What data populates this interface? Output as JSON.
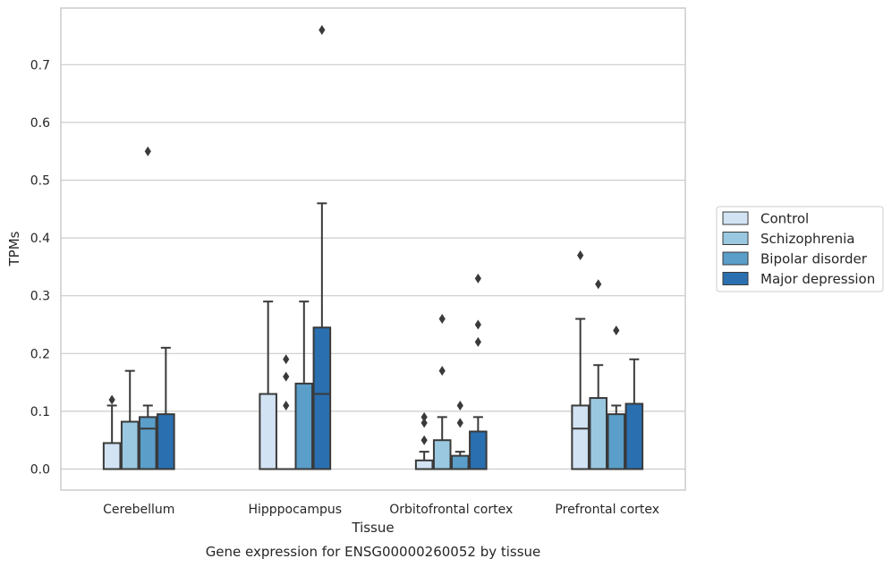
{
  "chart_data": {
    "type": "box",
    "title": "",
    "caption": "Gene expression for ENSG00000260052 by tissue",
    "xlabel": "Tissue",
    "ylabel": "TPMs",
    "ylim": [
      -0.037,
      0.8
    ],
    "yticks": [
      "0.0",
      "0.1",
      "0.2",
      "0.3",
      "0.4",
      "0.5",
      "0.6",
      "0.7"
    ],
    "grid": "horizontal",
    "legend_position": "outside-right",
    "categories": [
      "Cerebellum",
      "Hipppocampus",
      "Orbitofrontal cortex",
      "Prefrontal cortex"
    ],
    "series": [
      {
        "name": "Control",
        "color": "#d2e3f3",
        "boxes": [
          {
            "q1": 0.0,
            "median": 0.0,
            "q3": 0.045,
            "whisker_low": 0.0,
            "whisker_high": 0.11,
            "outliers": [
              0.12
            ]
          },
          {
            "q1": 0.0,
            "median": 0.0,
            "q3": 0.13,
            "whisker_low": 0.0,
            "whisker_high": 0.29,
            "outliers": []
          },
          {
            "q1": 0.0,
            "median": 0.0,
            "q3": 0.015,
            "whisker_low": 0.0,
            "whisker_high": 0.03,
            "outliers": [
              0.05,
              0.08,
              0.09
            ]
          },
          {
            "q1": 0.0,
            "median": 0.07,
            "q3": 0.11,
            "whisker_low": 0.0,
            "whisker_high": 0.26,
            "outliers": [
              0.37
            ]
          }
        ]
      },
      {
        "name": "Schizophrenia",
        "color": "#9ac8e0",
        "boxes": [
          {
            "q1": 0.0,
            "median": 0.0,
            "q3": 0.082,
            "whisker_low": 0.0,
            "whisker_high": 0.17,
            "outliers": []
          },
          {
            "q1": 0.0,
            "median": 0.0,
            "q3": 0.0,
            "whisker_low": 0.0,
            "whisker_high": 0.0,
            "outliers": [
              0.11,
              0.16,
              0.19
            ]
          },
          {
            "q1": 0.0,
            "median": 0.0,
            "q3": 0.05,
            "whisker_low": 0.0,
            "whisker_high": 0.09,
            "outliers": [
              0.17,
              0.26
            ]
          },
          {
            "q1": 0.0,
            "median": 0.0,
            "q3": 0.123,
            "whisker_low": 0.0,
            "whisker_high": 0.18,
            "outliers": [
              0.32
            ]
          }
        ]
      },
      {
        "name": "Bipolar disorder",
        "color": "#5a9ec9",
        "boxes": [
          {
            "q1": 0.0,
            "median": 0.07,
            "q3": 0.09,
            "whisker_low": 0.0,
            "whisker_high": 0.11,
            "outliers": [
              0.55
            ]
          },
          {
            "q1": 0.0,
            "median": 0.0,
            "q3": 0.148,
            "whisker_low": 0.0,
            "whisker_high": 0.29,
            "outliers": []
          },
          {
            "q1": 0.0,
            "median": 0.0,
            "q3": 0.023,
            "whisker_low": 0.0,
            "whisker_high": 0.03,
            "outliers": [
              0.08,
              0.11
            ]
          },
          {
            "q1": 0.0,
            "median": 0.0,
            "q3": 0.095,
            "whisker_low": 0.0,
            "whisker_high": 0.11,
            "outliers": [
              0.24
            ]
          }
        ]
      },
      {
        "name": "Major depression",
        "color": "#2a6fb0",
        "boxes": [
          {
            "q1": 0.0,
            "median": 0.0,
            "q3": 0.095,
            "whisker_low": 0.0,
            "whisker_high": 0.21,
            "outliers": []
          },
          {
            "q1": 0.0,
            "median": 0.13,
            "q3": 0.245,
            "whisker_low": 0.0,
            "whisker_high": 0.46,
            "outliers": [
              0.76
            ]
          },
          {
            "q1": 0.0,
            "median": 0.0,
            "q3": 0.065,
            "whisker_low": 0.0,
            "whisker_high": 0.09,
            "outliers": [
              0.22,
              0.25,
              0.33
            ]
          },
          {
            "q1": 0.0,
            "median": 0.0,
            "q3": 0.113,
            "whisker_low": 0.0,
            "whisker_high": 0.19,
            "outliers": []
          }
        ]
      }
    ]
  }
}
